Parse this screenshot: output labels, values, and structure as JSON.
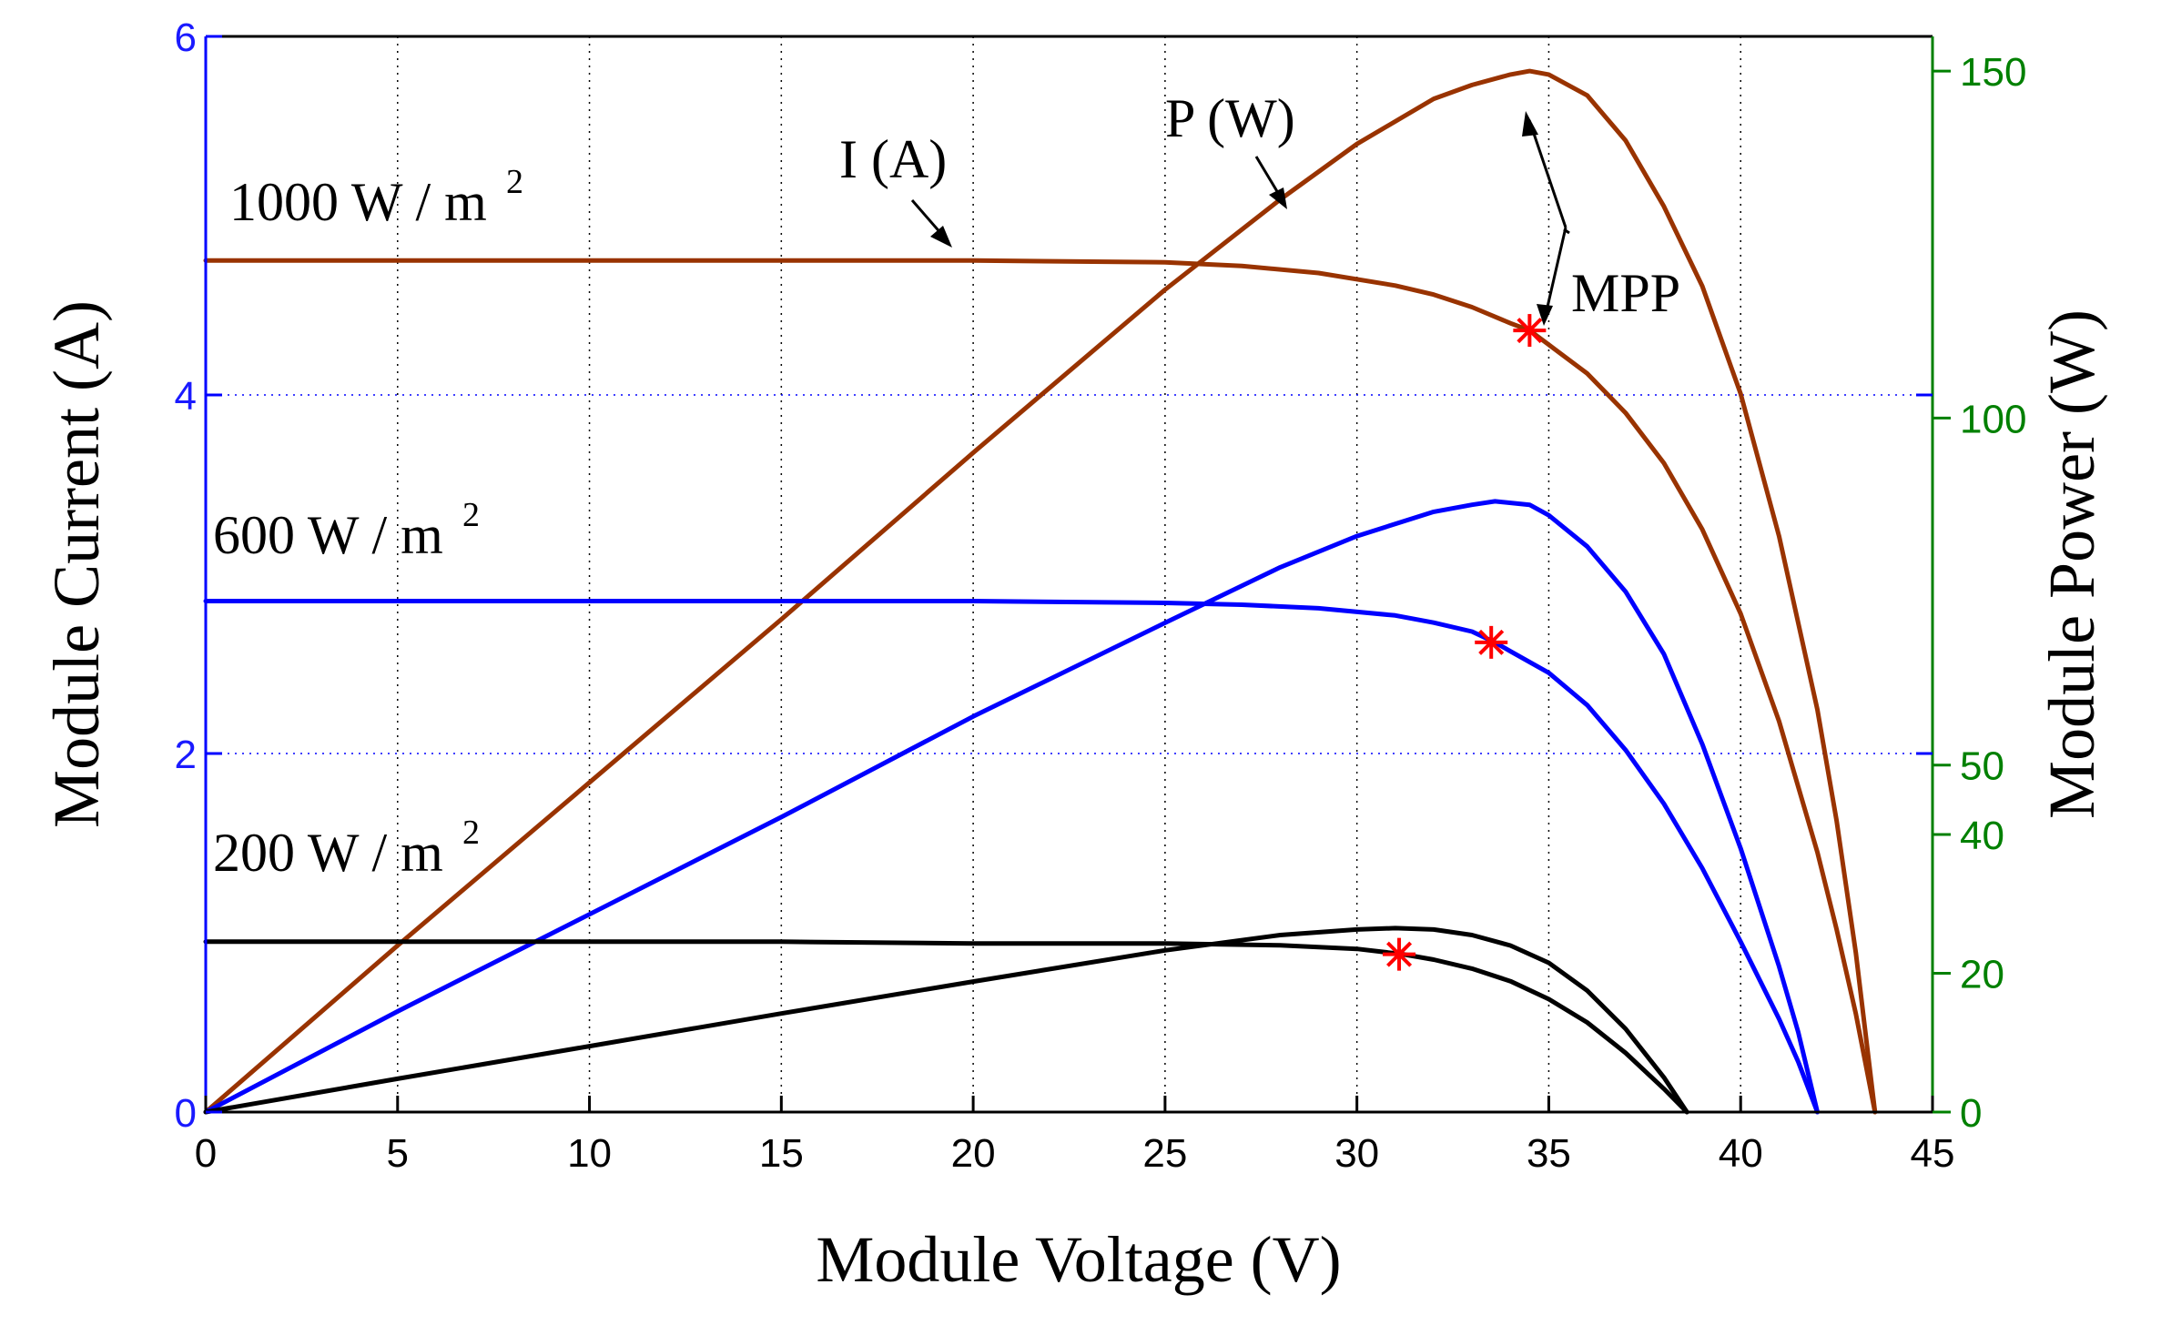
{
  "chart_data": {
    "type": "line",
    "xlabel": "Module Voltage (V)",
    "ylabel": "Module Current (A)",
    "y2label": "Module Power (W)",
    "xlim": [
      0,
      45
    ],
    "ylim": [
      0,
      6
    ],
    "y2lim": [
      0,
      155
    ],
    "xticks": [
      "0",
      "5",
      "10",
      "15",
      "20",
      "25",
      "30",
      "35",
      "40",
      "45"
    ],
    "yticks": [
      "0",
      "2",
      "4",
      "6"
    ],
    "y2ticks": [
      "0",
      "20",
      "40",
      "50",
      "100",
      "150"
    ],
    "grid": "dotted",
    "colors": {
      "i1000": "#993300",
      "p1000": "#993300",
      "i600": "#0000ff",
      "p600": "#0000ff",
      "i200": "#000000",
      "p200": "#000000",
      "mpp": "#ff0000",
      "left_axis": "#0000ff",
      "right_axis": "#008000",
      "hgrid": "#0000ff"
    },
    "series": [
      {
        "name": "I 1000",
        "axis": "left",
        "x": [
          0,
          5,
          10,
          15,
          20,
          25,
          27,
          29,
          31,
          32,
          33,
          34,
          34.5,
          35,
          36,
          37,
          38,
          39,
          40,
          41,
          42,
          42.5,
          43,
          43.5
        ],
        "values": [
          4.75,
          4.75,
          4.75,
          4.75,
          4.75,
          4.74,
          4.72,
          4.68,
          4.61,
          4.56,
          4.49,
          4.4,
          4.36,
          4.28,
          4.12,
          3.9,
          3.62,
          3.25,
          2.78,
          2.18,
          1.45,
          1.02,
          0.55,
          0
        ]
      },
      {
        "name": "P 1000",
        "axis": "right",
        "x": [
          0,
          5,
          10,
          15,
          20,
          25,
          28,
          30,
          32,
          33,
          34,
          34.5,
          35,
          36,
          37,
          38,
          39,
          40,
          41,
          42,
          42.5,
          43,
          43.5
        ],
        "values": [
          0,
          24,
          47.5,
          71,
          95,
          118.5,
          131.5,
          139.5,
          146,
          148,
          149.5,
          150,
          149.5,
          146.5,
          140,
          130.5,
          119,
          103.5,
          83,
          58,
          42,
          23,
          0
        ]
      },
      {
        "name": "I 600",
        "axis": "left",
        "x": [
          0,
          5,
          10,
          15,
          20,
          25,
          27,
          29,
          31,
          32,
          33,
          33.6,
          34,
          35,
          36,
          37,
          38,
          39,
          40,
          41,
          41.5,
          42
        ],
        "values": [
          2.85,
          2.85,
          2.85,
          2.85,
          2.85,
          2.84,
          2.83,
          2.81,
          2.77,
          2.73,
          2.68,
          2.62,
          2.57,
          2.45,
          2.27,
          2.02,
          1.72,
          1.36,
          0.95,
          0.52,
          0.28,
          0
        ]
      },
      {
        "name": "P 600",
        "axis": "right",
        "x": [
          0,
          5,
          10,
          15,
          20,
          25,
          28,
          30,
          32,
          33,
          33.6,
          34.5,
          35,
          36,
          37,
          38,
          39,
          40,
          41,
          41.5,
          42
        ],
        "values": [
          0,
          14.5,
          28.5,
          42.5,
          57,
          70.5,
          78.5,
          83,
          86.5,
          87.5,
          88,
          87.5,
          86,
          81.5,
          75,
          66,
          53,
          38,
          21,
          11.5,
          0
        ]
      },
      {
        "name": "I 200",
        "axis": "left",
        "x": [
          0,
          5,
          10,
          15,
          20,
          25,
          28,
          30,
          31.2,
          32,
          33,
          34,
          35,
          36,
          37,
          37.5,
          38,
          38.6
        ],
        "values": [
          0.95,
          0.95,
          0.95,
          0.95,
          0.94,
          0.94,
          0.93,
          0.91,
          0.88,
          0.85,
          0.8,
          0.73,
          0.63,
          0.5,
          0.33,
          0.23,
          0.13,
          0
        ]
      },
      {
        "name": "P 200",
        "axis": "right",
        "x": [
          0,
          5,
          10,
          15,
          20,
          25,
          28,
          30,
          31,
          32,
          33,
          34,
          35,
          36,
          37,
          37.5,
          38,
          38.6
        ],
        "values": [
          0,
          4.8,
          9.5,
          14.2,
          18.8,
          23.3,
          25.5,
          26.3,
          26.5,
          26.3,
          25.5,
          24,
          21.5,
          17.5,
          12,
          8.5,
          5,
          0
        ]
      }
    ],
    "mpp_points": [
      {
        "x": 34.5,
        "y": 4.36
      },
      {
        "x": 33.5,
        "y": 2.62
      },
      {
        "x": 31.1,
        "y": 0.88
      }
    ],
    "annotations": {
      "irr1000": "1000 W / m",
      "irr600": "600 W / m",
      "irr200": "200 W / m",
      "sup": "2",
      "current_label": "I (A)",
      "power_label": "P (W)",
      "mpp_label": "MPP"
    }
  }
}
